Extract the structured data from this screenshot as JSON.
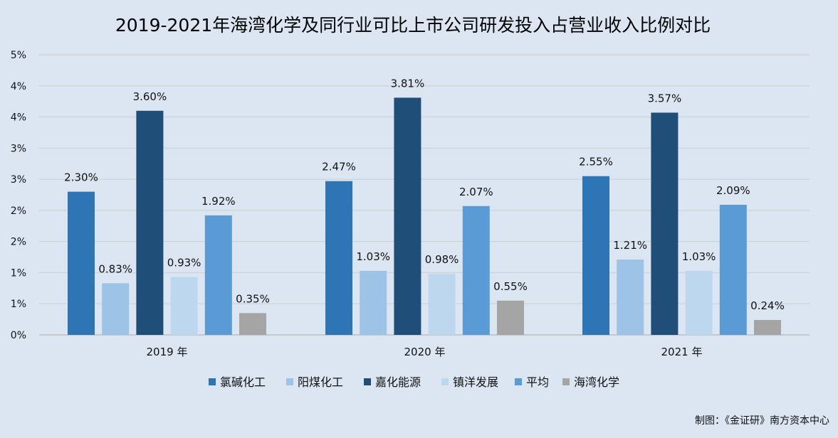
{
  "title": "2019-2021年海湾化学及同行业可比上市公司研发投入占营业收入比例对比",
  "source_note": "制图：《金证研》南方资本中心",
  "chart_data": {
    "type": "bar",
    "categories": [
      "2019 年",
      "2020 年",
      "2021 年"
    ],
    "y_tick_labels": [
      "0%",
      "1%",
      "1%",
      "2%",
      "2%",
      "3%",
      "3%",
      "4%",
      "4%",
      "5%"
    ],
    "ylim": [
      0,
      4.5
    ],
    "grid": true,
    "legend_position": "bottom",
    "series": [
      {
        "name": "氯碱化工",
        "color": "#2e75b6",
        "values": [
          2.3,
          2.47,
          2.55
        ],
        "labels": [
          "2.30%",
          "2.47%",
          "2.55%"
        ]
      },
      {
        "name": "阳煤化工",
        "color": "#9dc3e6",
        "values": [
          0.83,
          1.03,
          1.21
        ],
        "labels": [
          "0.83%",
          "1.03%",
          "1.21%"
        ]
      },
      {
        "name": "嘉化能源",
        "color": "#1f4e79",
        "values": [
          3.6,
          3.81,
          3.57
        ],
        "labels": [
          "3.60%",
          "3.81%",
          "3.57%"
        ]
      },
      {
        "name": "镇洋发展",
        "color": "#bdd7ee",
        "values": [
          0.93,
          0.98,
          1.03
        ],
        "labels": [
          "0.93%",
          "0.98%",
          "1.03%"
        ]
      },
      {
        "name": "平均",
        "color": "#5b9bd5",
        "values": [
          1.92,
          2.07,
          2.09
        ],
        "labels": [
          "1.92%",
          "2.07%",
          "2.09%"
        ]
      },
      {
        "name": "海湾化学",
        "color": "#a5a5a5",
        "values": [
          0.35,
          0.55,
          0.24
        ],
        "labels": [
          "0.35%",
          "0.55%",
          "0.24%"
        ]
      }
    ]
  }
}
